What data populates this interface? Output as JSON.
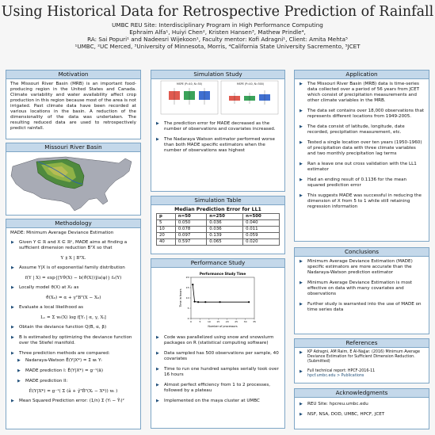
{
  "header": {
    "title": "Using Historical Data for Retrospective Prediction of Rainfall",
    "program": "UMBC REU Site: Interdisciplinary Program in High Performance Computing",
    "authors": "Ephraim Alfa¹, Huiyi Chen², Kristen Hansen³, Mathew Prindle⁴,",
    "ras": "RA: Sai Popuri¹ and Nadeesri Wijekoon¹,   Faculty mentor: Kofi Adragni¹,   Client: Amita Mehta⁵",
    "affiliations": "¹UMBC, ²UC Merced, ³University of Minnesota, Morris, ⁴California State University Sacremento, ⁵JCET"
  },
  "motivation": {
    "heading": "Motivation",
    "text": "The Missouri River Basin (MRB) is an important food-producing region in the United States and Canada. Climate variability and water availability affect crop production in this region because most of the area is not irrigated. Past climate data have been recorded at various locations in the basin. A reduction of the dimensionality of the data was undertaken. The resulting reduced data are used to retrospectively predict rainfall."
  },
  "basin": {
    "heading": "Missouri River Basin"
  },
  "methodology": {
    "heading": "Methodology",
    "intro": "MADE: Minimum Average Deviance Estimation",
    "b1": "Given Y ∈ ℝ and X ∈ ℝᵖ, MADE aims at finding a sufficient dimension reduction BᵀX so that",
    "eq1": "Y ⫫ X | BᵀX.",
    "b2": "Assume Y|X is of exponential family distribution",
    "eq2": "f(Y | X) = exp{[Yϑ(X) − b(ϑ(X))]/a(φ)} f₀(Y)",
    "b3": "Locally model ϑ(X) at X₀ as",
    "eq3": "ϑ(X₀) = α + γᵀBᵀ(X − X₀)",
    "b4": "Evaluate a local likelihood as",
    "eq4": "Lₓ = Σ wᵢ(X) log f[Yᵢ | α, γ, Xᵢ]",
    "b5": "Obtain the deviance function Q(B, α, β)",
    "b6": "B is estimated by optimizing the deviance function over the Stiefel manifold.",
    "b7": "Three prediction methods are compared:",
    "sub1": "Nadaraya-Watson Ê(Y|X*) = Σ wᵢ Yᵢ",
    "sub2": "MADE prediction I: Ê(Y|X*) = g⁻¹(â)",
    "sub3": "MADE prediction II:",
    "eq5": "Ê(Y|X*) = g⁻¹( Σ (â + γ̂ᵀB̂ᵀ(Xᵢ − X*)) wᵢ )",
    "b8": "Mean Squared Prediction error: (1/n) Σ (Yᵢ − Ŷᵢ)²"
  },
  "simulation_study": {
    "heading": "Simulation Study",
    "plot_left_title": "MSPE (P=40, N=50)",
    "plot_right_title": "MSPE (P=40, N=500)",
    "bullets": [
      "The prediction error for MADE decreased as the number of observations and covariates increased.",
      "The Nadaraya Watson estimator performed worse than both MADE specific estimators when the number of observations was highest"
    ]
  },
  "simulation_table": {
    "heading": "Simulation Table",
    "caption": "Median Prediction Error for LL1",
    "columns": [
      "p",
      "n=50",
      "n=250",
      "n=500"
    ],
    "rows": [
      [
        "5",
        "0.050",
        "0.036",
        "0.040"
      ],
      [
        "10",
        "0.078",
        "0.036",
        "0.011"
      ],
      [
        "20",
        "0.097",
        "0.139",
        "0.059"
      ],
      [
        "40",
        "0.597",
        "0.065",
        "0.020"
      ]
    ]
  },
  "performance": {
    "heading": "Performance Study",
    "chart_title": "Performance Study Time",
    "xlabel": "Number of processors",
    "ylabel": "Time in hours",
    "bullets": [
      "Code was parallelized using snow and snowslurm packages on R (statistical computing software)",
      "Data sampled has 500 observations per sample, 40 covariates",
      "Time to run one hundred samples serially took over 16 hours",
      "Almost perfect efficiency from 1 to 2 processes, followed by a plateau",
      "Implemented on the maya cluster at UMBC"
    ]
  },
  "chart_data": {
    "type": "line",
    "title": "Performance Study Time",
    "xlabel": "Number of processors",
    "ylabel": "Time in hours",
    "x": [
      1,
      2,
      4,
      8,
      16,
      32
    ],
    "values": [
      16.5,
      8.2,
      8.0,
      8.0,
      8.0,
      8.0
    ],
    "xlim": [
      0,
      35
    ],
    "ylim": [
      0,
      20
    ],
    "grid": false,
    "color": "#000000"
  },
  "application": {
    "heading": "Application",
    "bullets": [
      "The Missouri River Basin (MRB) data is time-series data collected over a period of 56 years from JCET which consist of precipitation measurements and other climate variables in the MRB.",
      "The data set contains over 18,000 observations that represents different locations from 1949-2005.",
      "The data consist of latitude, longitude, date recorded, precipitation measurement, etc.",
      "Tested a single location over ten years (1950-1960) of precipitation data with three climate variables and two monthly precipitation lag terms",
      "Ran a leave one out cross validation with the LL1 estimator",
      "Had an ending result of 0.1136 for the mean squared prediction error",
      "This suggests MADE was successful in reducing the dimension of X from 5 to 1 while still retaining regression information"
    ]
  },
  "conclusions": {
    "heading": "Conclusions",
    "bullets": [
      "Minimum Average Deviance Estimation (MADE) specific estimators are more accurate than the Nadaraya-Watson prediction estimator",
      "Minimum Average Deviance Estimation is most effective on data with many covariates and observations",
      "Further study is warranted into the use of MADE on time series data"
    ]
  },
  "references": {
    "heading": "References",
    "items": [
      "KP Adragni, AM Raim, E Al-Najjar. (2016) Minimum Average Deviance Estimation for Sufficient Dimension Reduction. (Submitted)",
      "Full technical report: HPCF-2016-11"
    ],
    "link": "hpcf.umbc.edu > Publications"
  },
  "acknowledgments": {
    "heading": "Acknowledgments",
    "items": [
      "REU Site: hpcreu.umbc.edu",
      "NSF, NSA, DOD, UMBC, HPCF, JCET"
    ]
  },
  "colors": {
    "box_border": "#7ea6c6",
    "header_fill": "#c4d8ea",
    "bullet": "#1f4e79",
    "boxplot_red": "#e05a4f",
    "boxplot_green": "#3aa35a",
    "boxplot_blue": "#3f6fd1"
  }
}
